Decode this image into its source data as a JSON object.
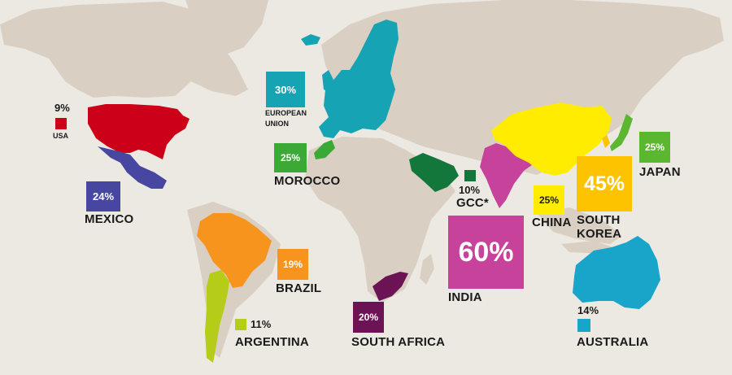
{
  "colors": {
    "background": "#ece9e2",
    "land": "#d9cfc2",
    "usa": "#cc0018",
    "mexico": "#4747a1",
    "european_union": "#16a3b3",
    "morocco": "#3aa935",
    "gcc": "#13773c",
    "india": "#c6429b",
    "china": "#ffec00",
    "south_korea": "#fdc300",
    "japan": "#5bb630",
    "brazil": "#f7941d",
    "argentina": "#b5cc18",
    "south_africa": "#6b1354",
    "australia": "#19a4c9"
  },
  "countries": {
    "usa": {
      "name": "USA",
      "value": "9%"
    },
    "mexico": {
      "name": "MEXICO",
      "value": "24%"
    },
    "european_union": {
      "name_line1": "EUROPEAN",
      "name_line2": "UNION",
      "value": "30%"
    },
    "morocco": {
      "name": "MOROCCO",
      "value": "25%"
    },
    "gcc": {
      "name": "GCC*",
      "value": "10%"
    },
    "india": {
      "name": "INDIA",
      "value": "60%"
    },
    "china": {
      "name": "CHINA",
      "value": "25%"
    },
    "south_korea": {
      "name_line1": "SOUTH",
      "name_line2": "KOREA",
      "value": "45%"
    },
    "japan": {
      "name": "JAPAN",
      "value": "25%"
    },
    "brazil": {
      "name": "BRAZIL",
      "value": "19%"
    },
    "argentina": {
      "name": "ARGENTINA",
      "value": "11%"
    },
    "south_africa": {
      "name": "SOUTH AFRICA",
      "value": "20%"
    },
    "australia": {
      "name": "AUSTRALIA",
      "value": "14%"
    }
  }
}
